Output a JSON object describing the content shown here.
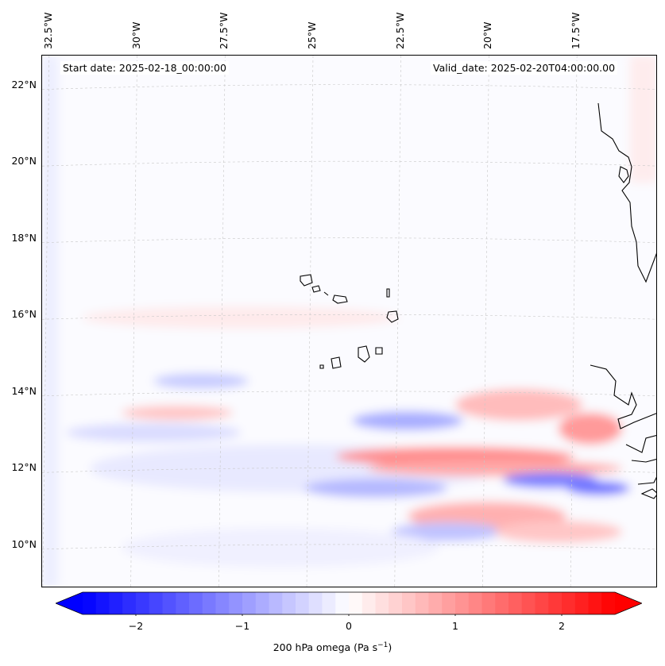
{
  "annotations": {
    "start_date": "Start date: 2025-02-18_00:00:00",
    "valid_date": "Valid_date: 2025-02-20T04:00:00.00"
  },
  "axes": {
    "lat_labels": [
      "22°N",
      "20°N",
      "18°N",
      "16°N",
      "14°N",
      "12°N",
      "10°N"
    ],
    "lat_values": [
      22,
      20,
      18,
      16,
      14,
      12,
      10
    ],
    "lon_labels": [
      "32.5°W",
      "30°W",
      "27.5°W",
      "25°W",
      "22.5°W",
      "20°W",
      "17.5°W"
    ],
    "lon_values": [
      -32.5,
      -30,
      -27.5,
      -25,
      -22.5,
      -20,
      -17.5
    ],
    "lat_range": [
      8.9,
      22.8
    ],
    "lon_range": [
      -32.7,
      -15.2
    ],
    "gridlines": true
  },
  "colorbar": {
    "range": [
      -2.5,
      2.5
    ],
    "ticks": [
      "−2",
      "−1",
      "0",
      "1",
      "2"
    ],
    "tick_values": [
      -2,
      -1,
      0,
      1,
      2
    ],
    "label_main": "200 hPa omega (Pa s",
    "label_sup": "−1",
    "label_end": ")",
    "colormap": "bwr",
    "extend": "both"
  },
  "colors": {
    "negative": "#0000ff",
    "zero": "#ffffff",
    "positive": "#ff0000",
    "coastline": "#000000"
  }
}
